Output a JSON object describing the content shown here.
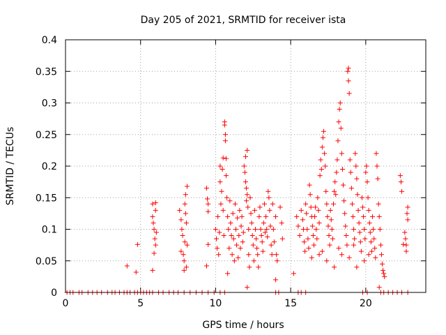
{
  "chart_data": {
    "type": "scatter",
    "title": "Day 205 of 2021, SRMTID for receiver ista",
    "xlabel": "GPS time / hours",
    "ylabel": "SRMTID / TECUs",
    "xlim": [
      0,
      24
    ],
    "ylim": [
      0,
      0.4
    ],
    "grid": true,
    "marker": "+",
    "color": "#ff0000",
    "x_ticks": [
      {
        "value": 0,
        "label": "0"
      },
      {
        "value": 5,
        "label": "5"
      },
      {
        "value": 10,
        "label": "10"
      },
      {
        "value": 15,
        "label": "15"
      },
      {
        "value": 20,
        "label": "20"
      }
    ],
    "y_ticks": [
      {
        "value": 0,
        "label": "0"
      },
      {
        "value": 0.05,
        "label": "0.05"
      },
      {
        "value": 0.1,
        "label": "0.1"
      },
      {
        "value": 0.15,
        "label": "0.15"
      },
      {
        "value": 0.2,
        "label": "0.2"
      },
      {
        "value": 0.25,
        "label": "0.25"
      },
      {
        "value": 0.3,
        "label": "0.3"
      },
      {
        "value": 0.35,
        "label": "0.35"
      },
      {
        "value": 0.4,
        "label": "0.4"
      }
    ],
    "points": [
      [
        0.1,
        0
      ],
      [
        0.3,
        0
      ],
      [
        0.5,
        0
      ],
      [
        0.9,
        0
      ],
      [
        1.1,
        0
      ],
      [
        1.5,
        0
      ],
      [
        1.8,
        0
      ],
      [
        2.1,
        0
      ],
      [
        2.4,
        0
      ],
      [
        2.8,
        0
      ],
      [
        3.1,
        0
      ],
      [
        3.3,
        0
      ],
      [
        3.6,
        0
      ],
      [
        3.9,
        0
      ],
      [
        4.1,
        0
      ],
      [
        4.3,
        0
      ],
      [
        4.6,
        0
      ],
      [
        4.8,
        0
      ],
      [
        5.0,
        0
      ],
      [
        5.2,
        0
      ],
      [
        5.4,
        0
      ],
      [
        5.6,
        0
      ],
      [
        5.8,
        0
      ],
      [
        6.2,
        0
      ],
      [
        6.5,
        0
      ],
      [
        6.9,
        0
      ],
      [
        7.2,
        0
      ],
      [
        7.5,
        0
      ],
      [
        7.9,
        0
      ],
      [
        8.3,
        0
      ],
      [
        8.7,
        0
      ],
      [
        9.1,
        0
      ],
      [
        9.5,
        0
      ],
      [
        9.9,
        0
      ],
      [
        10.3,
        0
      ],
      [
        10.6,
        0
      ],
      [
        14.0,
        0
      ],
      [
        14.2,
        0
      ],
      [
        15.5,
        0
      ],
      [
        15.7,
        0
      ],
      [
        16.0,
        0
      ],
      [
        19.8,
        0
      ],
      [
        20.1,
        0
      ],
      [
        21.0,
        0
      ],
      [
        21.2,
        0
      ],
      [
        21.5,
        0
      ],
      [
        21.8,
        0
      ],
      [
        22.1,
        0
      ],
      [
        22.4,
        0
      ],
      [
        22.8,
        0
      ],
      [
        4.1,
        0.042
      ],
      [
        4.7,
        0.032
      ],
      [
        4.8,
        0.076
      ],
      [
        5.8,
        0.035
      ],
      [
        9.4,
        0.042
      ],
      [
        9.5,
        0.076
      ],
      [
        15.2,
        0.03
      ],
      [
        14.0,
        0.02
      ],
      [
        12.1,
        0.008
      ],
      [
        20.9,
        0.008
      ],
      [
        22.5,
        0.076
      ],
      [
        5.8,
        0.14
      ],
      [
        5.8,
        0.12
      ],
      [
        5.85,
        0.11
      ],
      [
        5.9,
        0.1
      ],
      [
        5.95,
        0.085
      ],
      [
        6.0,
        0.13
      ],
      [
        6.0,
        0.075
      ],
      [
        6.05,
        0.095
      ],
      [
        5.9,
        0.062
      ],
      [
        6.0,
        0.142
      ],
      [
        7.6,
        0.13
      ],
      [
        7.7,
        0.115
      ],
      [
        7.75,
        0.1
      ],
      [
        7.8,
        0.09
      ],
      [
        7.85,
        0.06
      ],
      [
        7.9,
        0.05
      ],
      [
        7.9,
        0.035
      ],
      [
        7.95,
        0.14
      ],
      [
        8.0,
        0.155
      ],
      [
        8.0,
        0.125
      ],
      [
        8.05,
        0.11
      ],
      [
        8.1,
        0.168
      ],
      [
        8.1,
        0.075
      ],
      [
        8.05,
        0.04
      ],
      [
        7.95,
        0.08
      ],
      [
        7.7,
        0.065
      ],
      [
        9.4,
        0.165
      ],
      [
        9.45,
        0.148
      ],
      [
        9.5,
        0.14
      ],
      [
        9.5,
        0.128
      ],
      [
        10.0,
        0.1
      ],
      [
        10.05,
        0.085
      ],
      [
        10.1,
        0.07
      ],
      [
        10.15,
        0.12
      ],
      [
        10.2,
        0.06
      ],
      [
        10.25,
        0.095
      ],
      [
        10.3,
        0.2
      ],
      [
        10.3,
        0.175
      ],
      [
        10.35,
        0.14
      ],
      [
        10.4,
        0.16
      ],
      [
        10.45,
        0.195
      ],
      [
        10.5,
        0.213
      ],
      [
        10.5,
        0.13
      ],
      [
        10.55,
        0.09
      ],
      [
        10.6,
        0.27
      ],
      [
        10.6,
        0.265
      ],
      [
        10.65,
        0.25
      ],
      [
        10.65,
        0.24
      ],
      [
        10.7,
        0.212
      ],
      [
        10.7,
        0.185
      ],
      [
        10.75,
        0.15
      ],
      [
        10.8,
        0.12
      ],
      [
        10.8,
        0.03
      ],
      [
        10.85,
        0.1
      ],
      [
        10.9,
        0.07
      ],
      [
        10.95,
        0.145
      ],
      [
        11.0,
        0.11
      ],
      [
        11.05,
        0.09
      ],
      [
        11.1,
        0.06
      ],
      [
        11.15,
        0.125
      ],
      [
        11.2,
        0.085
      ],
      [
        11.25,
        0.05
      ],
      [
        11.3,
        0.14
      ],
      [
        11.35,
        0.1
      ],
      [
        11.4,
        0.075
      ],
      [
        11.45,
        0.118
      ],
      [
        11.5,
        0.055
      ],
      [
        11.55,
        0.09
      ],
      [
        11.6,
        0.13
      ],
      [
        11.65,
        0.07
      ],
      [
        11.7,
        0.105
      ],
      [
        11.75,
        0.12
      ],
      [
        11.8,
        0.08
      ],
      [
        11.85,
        0.095
      ],
      [
        11.9,
        0.2
      ],
      [
        11.95,
        0.19
      ],
      [
        12.0,
        0.215
      ],
      [
        12.0,
        0.175
      ],
      [
        12.05,
        0.165
      ],
      [
        12.05,
        0.145
      ],
      [
        12.1,
        0.225
      ],
      [
        12.1,
        0.155
      ],
      [
        12.15,
        0.135
      ],
      [
        12.2,
        0.1
      ],
      [
        12.2,
        0.06
      ],
      [
        12.25,
        0.04
      ],
      [
        12.3,
        0.15
      ],
      [
        12.35,
        0.125
      ],
      [
        12.4,
        0.11
      ],
      [
        12.45,
        0.09
      ],
      [
        12.5,
        0.075
      ],
      [
        12.55,
        0.05
      ],
      [
        12.6,
        0.13
      ],
      [
        12.65,
        0.1
      ],
      [
        12.7,
        0.085
      ],
      [
        12.75,
        0.07
      ],
      [
        12.8,
        0.06
      ],
      [
        12.85,
        0.04
      ],
      [
        12.9,
        0.12
      ],
      [
        12.95,
        0.135
      ],
      [
        13.0,
        0.1
      ],
      [
        13.05,
        0.09
      ],
      [
        13.1,
        0.08
      ],
      [
        13.15,
        0.065
      ],
      [
        13.2,
        0.11
      ],
      [
        13.25,
        0.14
      ],
      [
        13.3,
        0.095
      ],
      [
        13.35,
        0.12
      ],
      [
        13.4,
        0.1
      ],
      [
        13.45,
        0.088
      ],
      [
        13.5,
        0.16
      ],
      [
        13.55,
        0.15
      ],
      [
        13.6,
        0.13
      ],
      [
        13.65,
        0.105
      ],
      [
        13.7,
        0.075
      ],
      [
        13.75,
        0.06
      ],
      [
        13.8,
        0.14
      ],
      [
        13.85,
        0.1
      ],
      [
        13.9,
        0.08
      ],
      [
        14.0,
        0.12
      ],
      [
        14.05,
        0.06
      ],
      [
        14.1,
        0.05
      ],
      [
        14.3,
        0.135
      ],
      [
        14.4,
        0.11
      ],
      [
        14.45,
        0.085
      ],
      [
        15.4,
        0.12
      ],
      [
        15.5,
        0.105
      ],
      [
        15.6,
        0.09
      ],
      [
        15.7,
        0.13
      ],
      [
        15.8,
        0.115
      ],
      [
        15.85,
        0.1
      ],
      [
        15.9,
        0.08
      ],
      [
        15.95,
        0.065
      ],
      [
        16.0,
        0.14
      ],
      [
        16.05,
        0.125
      ],
      [
        16.1,
        0.1
      ],
      [
        16.15,
        0.085
      ],
      [
        16.2,
        0.07
      ],
      [
        16.25,
        0.17
      ],
      [
        16.3,
        0.155
      ],
      [
        16.35,
        0.135
      ],
      [
        16.4,
        0.12
      ],
      [
        16.45,
        0.105
      ],
      [
        16.5,
        0.09
      ],
      [
        16.55,
        0.075
      ],
      [
        16.6,
        0.12
      ],
      [
        16.65,
        0.135
      ],
      [
        16.7,
        0.1
      ],
      [
        16.75,
        0.085
      ],
      [
        16.8,
        0.15
      ],
      [
        16.85,
        0.13
      ],
      [
        16.9,
        0.11
      ],
      [
        16.95,
        0.185
      ],
      [
        17.0,
        0.21
      ],
      [
        17.05,
        0.195
      ],
      [
        17.1,
        0.23
      ],
      [
        17.15,
        0.245
      ],
      [
        17.2,
        0.255
      ],
      [
        17.25,
        0.22
      ],
      [
        17.3,
        0.2
      ],
      [
        17.35,
        0.16
      ],
      [
        17.4,
        0.14
      ],
      [
        17.45,
        0.12
      ],
      [
        17.5,
        0.105
      ],
      [
        17.55,
        0.09
      ],
      [
        17.6,
        0.075
      ],
      [
        17.65,
        0.13
      ],
      [
        17.7,
        0.115
      ],
      [
        17.75,
        0.1
      ],
      [
        17.8,
        0.085
      ],
      [
        17.85,
        0.14
      ],
      [
        17.9,
        0.16
      ],
      [
        17.95,
        0.175
      ],
      [
        18.0,
        0.155
      ],
      [
        18.05,
        0.19
      ],
      [
        18.1,
        0.21
      ],
      [
        18.15,
        0.24
      ],
      [
        18.2,
        0.27
      ],
      [
        18.25,
        0.29
      ],
      [
        18.3,
        0.3
      ],
      [
        18.35,
        0.26
      ],
      [
        18.4,
        0.22
      ],
      [
        18.45,
        0.195
      ],
      [
        18.5,
        0.17
      ],
      [
        18.55,
        0.145
      ],
      [
        18.6,
        0.125
      ],
      [
        18.65,
        0.105
      ],
      [
        18.7,
        0.09
      ],
      [
        18.75,
        0.075
      ],
      [
        18.8,
        0.35
      ],
      [
        18.85,
        0.355
      ],
      [
        18.85,
        0.335
      ],
      [
        18.9,
        0.315
      ],
      [
        18.95,
        0.21
      ],
      [
        19.0,
        0.19
      ],
      [
        19.05,
        0.165
      ],
      [
        19.1,
        0.14
      ],
      [
        19.15,
        0.12
      ],
      [
        19.2,
        0.1
      ],
      [
        19.25,
        0.085
      ],
      [
        19.3,
        0.22
      ],
      [
        19.35,
        0.2
      ],
      [
        19.4,
        0.18
      ],
      [
        19.45,
        0.155
      ],
      [
        19.5,
        0.13
      ],
      [
        19.55,
        0.11
      ],
      [
        19.6,
        0.095
      ],
      [
        19.65,
        0.08
      ],
      [
        19.7,
        0.065
      ],
      [
        19.75,
        0.15
      ],
      [
        19.8,
        0.135
      ],
      [
        19.85,
        0.12
      ],
      [
        19.9,
        0.1
      ],
      [
        19.95,
        0.085
      ],
      [
        20.0,
        0.19
      ],
      [
        20.05,
        0.2
      ],
      [
        20.1,
        0.175
      ],
      [
        20.15,
        0.15
      ],
      [
        20.2,
        0.13
      ],
      [
        20.25,
        0.11
      ],
      [
        20.3,
        0.095
      ],
      [
        20.35,
        0.08
      ],
      [
        20.4,
        0.065
      ],
      [
        20.45,
        0.12
      ],
      [
        20.5,
        0.1
      ],
      [
        20.55,
        0.085
      ],
      [
        20.6,
        0.07
      ],
      [
        20.65,
        0.055
      ],
      [
        20.7,
        0.22
      ],
      [
        20.75,
        0.2
      ],
      [
        20.8,
        0.18
      ],
      [
        20.85,
        0.14
      ],
      [
        20.9,
        0.12
      ],
      [
        20.95,
        0.1
      ],
      [
        21.0,
        0.075
      ],
      [
        21.05,
        0.06
      ],
      [
        21.1,
        0.045
      ],
      [
        21.15,
        0.035
      ],
      [
        21.2,
        0.03
      ],
      [
        21.25,
        0.025
      ],
      [
        16.9,
        0.06
      ],
      [
        17.4,
        0.05
      ],
      [
        17.9,
        0.04
      ],
      [
        18.4,
        0.06
      ],
      [
        18.9,
        0.055
      ],
      [
        19.4,
        0.04
      ],
      [
        19.9,
        0.05
      ],
      [
        16.4,
        0.055
      ],
      [
        17.1,
        0.065
      ],
      [
        18.2,
        0.07
      ],
      [
        19.2,
        0.075
      ],
      [
        20.2,
        0.06
      ],
      [
        22.3,
        0.185
      ],
      [
        22.35,
        0.175
      ],
      [
        22.4,
        0.16
      ],
      [
        22.6,
        0.095
      ],
      [
        22.65,
        0.085
      ],
      [
        22.7,
        0.075
      ],
      [
        22.7,
        0.065
      ],
      [
        22.75,
        0.125
      ],
      [
        22.8,
        0.135
      ],
      [
        22.8,
        0.115
      ]
    ]
  }
}
